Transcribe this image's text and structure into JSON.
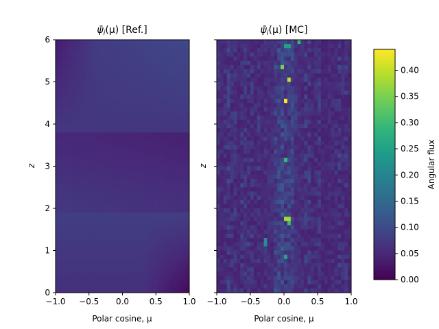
{
  "chart_data": [
    {
      "type": "heatmap",
      "title": "ψ̄ᵢ(μ) [Ref.]",
      "title_parts": [
        "ψ̄",
        "i",
        "(μ) [Ref.]"
      ],
      "xlabel": "Polar cosine, μ",
      "ylabel": "z",
      "xlim": [
        -1.0,
        1.0
      ],
      "ylim": [
        0,
        6
      ],
      "xticks": [
        "−1.0",
        "−0.5",
        "0.0",
        "0.5",
        "1.0"
      ],
      "yticks": [
        "0",
        "1",
        "2",
        "3",
        "4",
        "5",
        "6"
      ],
      "grid": false,
      "description_values": {
        "field": "smooth",
        "bands_z": [
          0,
          1.85,
          3.85,
          6
        ],
        "value_range": [
          0.01,
          0.11
        ]
      }
    },
    {
      "type": "heatmap",
      "title": "ψ̄ᵢ(μ) [MC]",
      "title_parts": [
        "ψ̄",
        "i",
        "(μ) [MC]"
      ],
      "xlabel": "Polar cosine, μ",
      "ylabel": "z",
      "xlim": [
        -1.0,
        1.0
      ],
      "ylim": [
        0,
        6
      ],
      "xticks": [
        "−1.0",
        "−0.5",
        "0.0",
        "0.5",
        "1.0"
      ],
      "yticks": [
        "0",
        "1",
        "2",
        "3",
        "4",
        "5",
        "6"
      ],
      "grid": false,
      "hotspots": [
        {
          "mu": 0.03,
          "z": 4.55,
          "value": 0.44
        },
        {
          "mu": 0.09,
          "z": 5.05,
          "value": 0.4
        },
        {
          "mu": -0.01,
          "z": 5.35,
          "value": 0.35
        },
        {
          "mu": 0.05,
          "z": 1.75,
          "value": 0.38
        },
        {
          "mu": 0.09,
          "z": 1.65,
          "value": 0.3
        },
        {
          "mu": 0.03,
          "z": 3.15,
          "value": 0.3
        },
        {
          "mu": 0.05,
          "z": 5.85,
          "value": 0.25
        },
        {
          "mu": 0.23,
          "z": 5.95,
          "value": 0.28
        },
        {
          "mu": 0.04,
          "z": 0.85,
          "value": 0.26
        },
        {
          "mu": -0.27,
          "z": 1.2,
          "value": 0.22
        }
      ]
    }
  ],
  "colorbar": {
    "label": "Angular flux",
    "min": 0.0,
    "max": 0.44,
    "ticks": [
      "0.00",
      "0.05",
      "0.10",
      "0.15",
      "0.20",
      "0.25",
      "0.30",
      "0.35",
      "0.40"
    ],
    "tick_values": [
      0.0,
      0.05,
      0.1,
      0.15,
      0.2,
      0.25,
      0.3,
      0.35,
      0.4
    ],
    "colormap": "viridis"
  }
}
